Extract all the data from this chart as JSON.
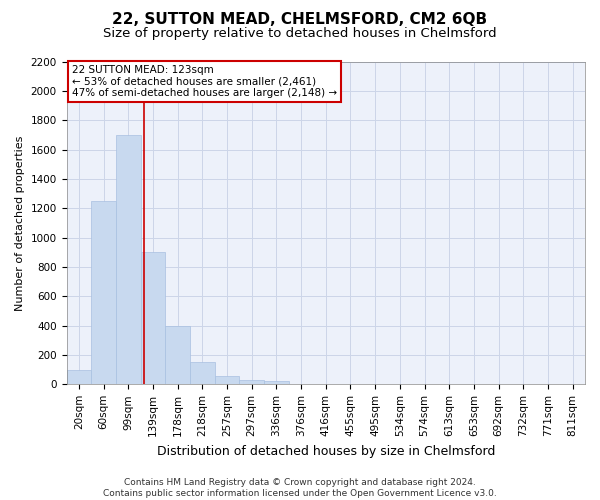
{
  "title1": "22, SUTTON MEAD, CHELMSFORD, CM2 6QB",
  "title2": "Size of property relative to detached houses in Chelmsford",
  "xlabel": "Distribution of detached houses by size in Chelmsford",
  "ylabel": "Number of detached properties",
  "categories": [
    "20sqm",
    "60sqm",
    "99sqm",
    "139sqm",
    "178sqm",
    "218sqm",
    "257sqm",
    "297sqm",
    "336sqm",
    "376sqm",
    "416sqm",
    "455sqm",
    "495sqm",
    "534sqm",
    "574sqm",
    "613sqm",
    "653sqm",
    "692sqm",
    "732sqm",
    "771sqm",
    "811sqm"
  ],
  "values": [
    100,
    1250,
    1700,
    900,
    400,
    150,
    60,
    30,
    20,
    0,
    0,
    0,
    0,
    0,
    0,
    0,
    0,
    0,
    0,
    0,
    0
  ],
  "bar_color": "#c8d9ef",
  "bar_edge_color": "#a8c0e0",
  "vline_x_idx": 2.62,
  "vline_color": "#cc0000",
  "annotation_text": "22 SUTTON MEAD: 123sqm\n← 53% of detached houses are smaller (2,461)\n47% of semi-detached houses are larger (2,148) →",
  "annotation_box_color": "#ffffff",
  "annotation_box_edge_color": "#cc0000",
  "ylim": [
    0,
    2200
  ],
  "yticks": [
    0,
    200,
    400,
    600,
    800,
    1000,
    1200,
    1400,
    1600,
    1800,
    2000,
    2200
  ],
  "grid_color": "#ccd5e8",
  "bg_color": "#edf1fa",
  "footer": "Contains HM Land Registry data © Crown copyright and database right 2024.\nContains public sector information licensed under the Open Government Licence v3.0.",
  "title1_fontsize": 11,
  "title2_fontsize": 9.5,
  "xlabel_fontsize": 9,
  "ylabel_fontsize": 8,
  "tick_fontsize": 7.5,
  "annotation_fontsize": 7.5,
  "footer_fontsize": 6.5
}
